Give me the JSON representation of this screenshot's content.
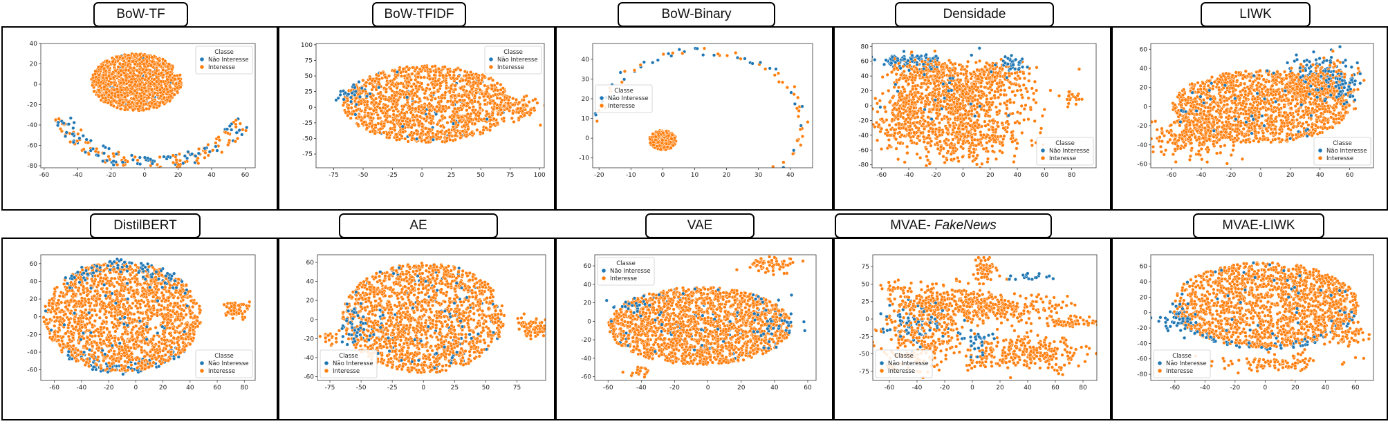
{
  "figure": {
    "legend_title": "Classe",
    "legend_labels": [
      "Não Interesse",
      "Interesse"
    ]
  },
  "colors": {
    "nao_interesse": "#1f77b4",
    "interesse": "#ff7f0e"
  },
  "chart_data": [
    {
      "id": "bow-tf",
      "type": "scatter",
      "title": "BoW-TF",
      "xlim": [
        -62,
        66
      ],
      "ylim": [
        -82,
        40
      ],
      "xticks": [
        -60,
        -40,
        -20,
        0,
        20,
        40,
        60
      ],
      "yticks": [
        -80,
        -60,
        -40,
        -20,
        0,
        20,
        40
      ],
      "legend_position": "top-right",
      "series": [
        {
          "name": "Não Interesse",
          "color": "#1f77b4"
        },
        {
          "name": "Interesse",
          "color": "#ff7f0e"
        }
      ]
    },
    {
      "id": "bow-tfidf",
      "type": "scatter",
      "title": "BoW-TFIDF",
      "xlim": [
        -90,
        104
      ],
      "ylim": [
        -97,
        102
      ],
      "xticks": [
        -75,
        -50,
        -25,
        0,
        25,
        50,
        75,
        100
      ],
      "yticks": [
        -75,
        -50,
        -25,
        0,
        25,
        50,
        75,
        100
      ],
      "legend_position": "top-right",
      "series": [
        {
          "name": "Não Interesse",
          "color": "#1f77b4"
        },
        {
          "name": "Interesse",
          "color": "#ff7f0e"
        }
      ]
    },
    {
      "id": "bow-binary",
      "type": "scatter",
      "title": "BoW-Binary",
      "xlim": [
        -22,
        47
      ],
      "ylim": [
        -15,
        48
      ],
      "xticks": [
        -20,
        -10,
        0,
        10,
        20,
        30,
        40
      ],
      "yticks": [
        -10,
        0,
        10,
        20,
        30,
        40
      ],
      "legend_position": "center-left",
      "series": [
        {
          "name": "Não Interesse",
          "color": "#1f77b4"
        },
        {
          "name": "Interesse",
          "color": "#ff7f0e"
        }
      ]
    },
    {
      "id": "densidade",
      "type": "scatter",
      "title": "Densidade",
      "xlim": [
        -67,
        98
      ],
      "ylim": [
        -84,
        84
      ],
      "xticks": [
        -60,
        -40,
        -20,
        0,
        20,
        40,
        60,
        80
      ],
      "yticks": [
        -80,
        -60,
        -40,
        -20,
        0,
        20,
        40,
        60,
        80
      ],
      "legend_position": "bottom-right",
      "series": [
        {
          "name": "Não Interesse",
          "color": "#1f77b4"
        },
        {
          "name": "Interesse",
          "color": "#ff7f0e"
        }
      ]
    },
    {
      "id": "liwk",
      "type": "scatter",
      "title": "LIWK",
      "xlim": [
        -74,
        76
      ],
      "ylim": [
        -64,
        66
      ],
      "xticks": [
        -60,
        -40,
        -20,
        0,
        20,
        40,
        60
      ],
      "yticks": [
        -60,
        -40,
        -20,
        0,
        20,
        40,
        60
      ],
      "legend_position": "bottom-right",
      "series": [
        {
          "name": "Não Interesse",
          "color": "#1f77b4"
        },
        {
          "name": "Interesse",
          "color": "#ff7f0e"
        }
      ]
    },
    {
      "id": "distilbert",
      "type": "scatter",
      "title": "DistilBERT",
      "xlim": [
        -70,
        88
      ],
      "ylim": [
        -72,
        70
      ],
      "xticks": [
        -60,
        -40,
        -20,
        0,
        20,
        40,
        60,
        80
      ],
      "yticks": [
        -60,
        -40,
        -20,
        0,
        20,
        40,
        60
      ],
      "legend_position": "bottom-right",
      "series": [
        {
          "name": "Não Interesse",
          "color": "#1f77b4"
        },
        {
          "name": "Interesse",
          "color": "#ff7f0e"
        }
      ]
    },
    {
      "id": "ae",
      "type": "scatter",
      "title": "AE",
      "xlim": [
        -85,
        98
      ],
      "ylim": [
        -64,
        68
      ],
      "xticks": [
        -75,
        -50,
        -25,
        0,
        25,
        50,
        75
      ],
      "yticks": [
        -60,
        -40,
        -20,
        0,
        20,
        40,
        60
      ],
      "legend_position": "bottom-left",
      "series": [
        {
          "name": "Não Interesse",
          "color": "#1f77b4"
        },
        {
          "name": "Interesse",
          "color": "#ff7f0e"
        }
      ]
    },
    {
      "id": "vae",
      "type": "scatter",
      "title": "VAE",
      "xlim": [
        -68,
        65
      ],
      "ylim": [
        -64,
        72
      ],
      "xticks": [
        -60,
        -40,
        -20,
        0,
        20,
        40,
        60
      ],
      "yticks": [
        -60,
        -40,
        -20,
        0,
        20,
        40,
        60
      ],
      "legend_position": "top-left",
      "series": [
        {
          "name": "Não Interesse",
          "color": "#1f77b4"
        },
        {
          "name": "Interesse",
          "color": "#ff7f0e"
        }
      ]
    },
    {
      "id": "mvae-fakenews",
      "type": "scatter",
      "title": "MVAE- ",
      "title_italic": "FakeNews",
      "xlim": [
        -72,
        90
      ],
      "ylim": [
        -88,
        92
      ],
      "xticks": [
        -60,
        -40,
        -20,
        0,
        20,
        40,
        60,
        80
      ],
      "yticks": [
        -75,
        -50,
        -25,
        0,
        25,
        50,
        75
      ],
      "legend_position": "bottom-left",
      "series": [
        {
          "name": "Não Interesse",
          "color": "#1f77b4"
        },
        {
          "name": "Interesse",
          "color": "#ff7f0e"
        }
      ]
    },
    {
      "id": "mvae-liwk",
      "type": "scatter",
      "title": "MVAE-LIWK",
      "xlim": [
        -76,
        72
      ],
      "ylim": [
        -88,
        75
      ],
      "xticks": [
        -60,
        -40,
        -20,
        0,
        20,
        40,
        60
      ],
      "yticks": [
        -80,
        -60,
        -40,
        -20,
        0,
        20,
        40,
        60
      ],
      "legend_position": "bottom-left",
      "series": [
        {
          "name": "Não Interesse",
          "color": "#1f77b4"
        },
        {
          "name": "Interesse",
          "color": "#ff7f0e"
        }
      ]
    }
  ]
}
